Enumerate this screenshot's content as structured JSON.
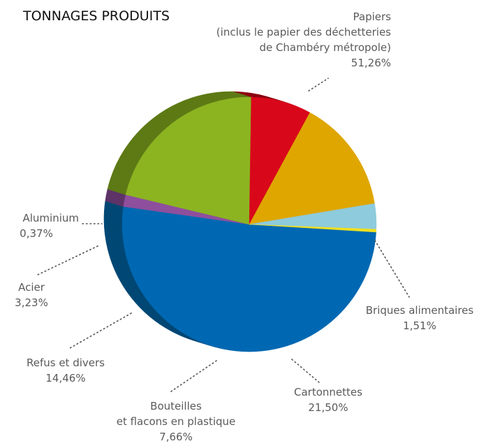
{
  "chart_data": {
    "type": "pie",
    "title": "TONNAGES PRODUITS",
    "legend": "none",
    "slices": [
      {
        "key": "papiers",
        "label_lines": [
          "Papiers",
          "(inclus le papier des déchetteries",
          "de Chambéry métropole)"
        ],
        "value_text": "51,26%",
        "value": 51.26,
        "color": "#0068b2",
        "side": "#004875"
      },
      {
        "key": "briques",
        "label_lines": [
          "Briques alimentaires"
        ],
        "value_text": "1,51%",
        "value": 1.51,
        "color": "#8e4f9d",
        "side": "#5e3468"
      },
      {
        "key": "cartonnettes",
        "label_lines": [
          "Cartonnettes"
        ],
        "value_text": "21,50%",
        "value": 21.5,
        "color": "#8cb421",
        "side": "#5e7a16"
      },
      {
        "key": "bouteilles",
        "label_lines": [
          "Bouteilles",
          "et flacons en plastique"
        ],
        "value_text": "7,66%",
        "value": 7.66,
        "color": "#d9071a",
        "side": "#8c0511"
      },
      {
        "key": "refus",
        "label_lines": [
          "Refus et divers"
        ],
        "value_text": "14,46%",
        "value": 14.46,
        "color": "#dfa600",
        "side": "#8f6a00"
      },
      {
        "key": "acier",
        "label_lines": [
          "Acier"
        ],
        "value_text": "3,23%",
        "value": 3.23,
        "color": "#8ecbdc",
        "side": "#4f7f8b"
      },
      {
        "key": "aluminium",
        "label_lines": [
          "Aluminium"
        ],
        "value_text": "0,37%",
        "value": 0.37,
        "color": "#f0e020",
        "side": "#9a8e00"
      }
    ]
  }
}
